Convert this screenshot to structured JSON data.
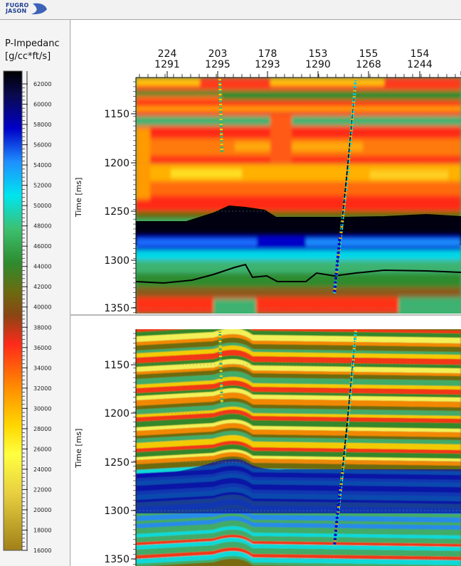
{
  "app": {
    "logo_line1": "FUGRO",
    "logo_line2": "JASON"
  },
  "colors": {
    "scale": [
      "#000000",
      "#0a0a5a",
      "#0000c8",
      "#1e90ff",
      "#00e5ee",
      "#3cb371",
      "#2e8b2e",
      "#6b6b10",
      "#8b5a1a",
      "#ff2a1a",
      "#ff8c00",
      "#ffd700",
      "#ffff40",
      "#c8a020"
    ],
    "well_line": "#000000",
    "horizon": "#000000"
  },
  "legend": {
    "title": "P-Impedanc",
    "units": "[g/cc*ft/s]",
    "ticks": [
      "62000",
      "60000",
      "58000",
      "56000",
      "54000",
      "52000",
      "50000",
      "48000",
      "46000",
      "44000",
      "42000",
      "40000",
      "38000",
      "36000",
      "34000",
      "32000",
      "30000",
      "28000",
      "26000",
      "24000",
      "22000",
      "20000",
      "18000",
      "16000"
    ]
  },
  "well_header": {
    "top_row": [
      "224",
      "203",
      "178",
      "153",
      "155",
      "154"
    ],
    "bottom_row": [
      "1291",
      "1295",
      "1293",
      "1290",
      "1268",
      "1244"
    ]
  },
  "panel_top": {
    "ylabel": "Time [ms]",
    "y_ticks": [
      "1150",
      "1200",
      "1250",
      "1300",
      "1350"
    ]
  },
  "panel_bottom": {
    "ylabel": "Time [ms]",
    "y_ticks": [
      "1150",
      "1200",
      "1250",
      "1300",
      "1350"
    ]
  }
}
